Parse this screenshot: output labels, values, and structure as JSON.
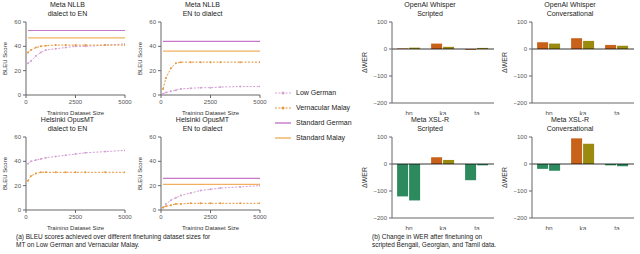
{
  "chart_data": [
    {
      "type": "line",
      "title": "Meta NLLB\ndialect to EN",
      "xlabel": "Training Dataset Size",
      "ylabel": "BLEU Score",
      "x": [
        100,
        250,
        500,
        750,
        1000,
        1500,
        2000,
        2500,
        3000,
        4000,
        5000
      ],
      "series": [
        {
          "name": "Low German",
          "color": "#d4a0d4",
          "marker": "dot",
          "line_style": "dotted",
          "values": [
            26,
            28,
            32,
            35,
            37,
            38,
            39,
            40,
            40,
            41,
            42
          ]
        },
        {
          "name": "Vernacular Malay",
          "color": "#e8963c",
          "marker": "dot",
          "line_style": "dotted",
          "values": [
            35,
            37,
            39,
            40,
            40.5,
            41,
            41,
            41,
            41,
            41,
            41
          ]
        },
        {
          "name": "Standard German",
          "color": "#c878c8",
          "line_style": "solid",
          "values": [
            53,
            53,
            53,
            53,
            53,
            53,
            53,
            53,
            53,
            53,
            53
          ]
        },
        {
          "name": "Standard Malay",
          "color": "#f0b060",
          "line_style": "solid",
          "values": [
            47,
            47,
            47,
            47,
            47,
            47,
            47,
            47,
            47,
            47,
            47
          ]
        }
      ],
      "xlim": [
        0,
        5000
      ],
      "xticks": [
        0,
        2500,
        5000
      ],
      "ylim": [
        0,
        60
      ],
      "yticks": [
        0,
        20,
        40,
        60
      ],
      "grid": false,
      "legend": "right"
    },
    {
      "type": "line",
      "title": "Meta NLLB\nEN to dialect",
      "xlabel": "Training Dataset Size",
      "ylabel": "BLEU Score",
      "x": [
        100,
        250,
        500,
        750,
        1000,
        1500,
        2000,
        2500,
        3000,
        4000,
        5000
      ],
      "series": [
        {
          "name": "Low German",
          "color": "#d4a0d4",
          "marker": "dot",
          "line_style": "dotted",
          "values": [
            1,
            2,
            3,
            4,
            5,
            5.5,
            6,
            6,
            6.5,
            7,
            7
          ]
        },
        {
          "name": "Vernacular Malay",
          "color": "#e8963c",
          "marker": "dot",
          "line_style": "dotted",
          "values": [
            5,
            14,
            22,
            26,
            27,
            27,
            27,
            27,
            27,
            27,
            27
          ]
        },
        {
          "name": "Standard German",
          "color": "#c878c8",
          "line_style": "solid",
          "values": [
            44,
            44,
            44,
            44,
            44,
            44,
            44,
            44,
            44,
            44,
            44
          ]
        },
        {
          "name": "Standard Malay",
          "color": "#f0b060",
          "line_style": "solid",
          "values": [
            36,
            36,
            36,
            36,
            36,
            36,
            36,
            36,
            36,
            36,
            36
          ]
        }
      ],
      "xlim": [
        0,
        5000
      ],
      "xticks": [
        0,
        2500,
        5000
      ],
      "ylim": [
        0,
        60
      ],
      "yticks": [
        0,
        20,
        40,
        60
      ],
      "grid": false
    },
    {
      "type": "line",
      "title": "Helsinki OpusMT\ndialect to EN",
      "xlabel": "Training Dataset Size",
      "ylabel": "BLEU Score",
      "x": [
        100,
        250,
        500,
        750,
        1000,
        1500,
        2000,
        2500,
        3000,
        4000,
        5000
      ],
      "series": [
        {
          "name": "Low German",
          "color": "#d4a0d4",
          "marker": "dot",
          "line_style": "dotted",
          "values": [
            38,
            40,
            41,
            42,
            43,
            44,
            45,
            46,
            47,
            48,
            49
          ]
        },
        {
          "name": "Vernacular Malay",
          "color": "#e8963c",
          "marker": "dot",
          "line_style": "dotted",
          "values": [
            24,
            28,
            30,
            31,
            31,
            31,
            31,
            31,
            31,
            31,
            31
          ]
        }
      ],
      "xlim": [
        0,
        5000
      ],
      "xticks": [
        0,
        2500,
        5000
      ],
      "ylim": [
        0,
        60
      ],
      "yticks": [
        0,
        20,
        40,
        60
      ],
      "grid": false
    },
    {
      "type": "line",
      "title": "Helsinki OpusMT\nEN to dialect",
      "xlabel": "Training Dataset Size",
      "ylabel": "BLEU Score",
      "x": [
        100,
        250,
        500,
        750,
        1000,
        1500,
        2000,
        2500,
        3000,
        4000,
        5000
      ],
      "series": [
        {
          "name": "Low German",
          "color": "#d4a0d4",
          "marker": "dot",
          "line_style": "dotted",
          "values": [
            2,
            5,
            8,
            10,
            12,
            14,
            16,
            17,
            18,
            19,
            20
          ]
        },
        {
          "name": "Vernacular Malay",
          "color": "#e8963c",
          "marker": "dot",
          "line_style": "dotted",
          "values": [
            2,
            3,
            4,
            5,
            5,
            5.5,
            5.5,
            5.5,
            5.5,
            5.5,
            5.5
          ]
        },
        {
          "name": "Standard German",
          "color": "#c878c8",
          "line_style": "solid",
          "values": [
            26,
            26,
            26,
            26,
            26,
            26,
            26,
            26,
            26,
            26,
            26
          ]
        },
        {
          "name": "Standard Malay",
          "color": "#f0b060",
          "line_style": "solid",
          "values": [
            21,
            21,
            21,
            21,
            21,
            21,
            21,
            21,
            21,
            21,
            21
          ]
        }
      ],
      "xlim": [
        0,
        5000
      ],
      "xticks": [
        0,
        2500,
        5000
      ],
      "ylim": [
        0,
        60
      ],
      "yticks": [
        0,
        20,
        40,
        60
      ],
      "grid": false
    },
    {
      "type": "bar",
      "title": "OpenAI Whisper\nScripted",
      "ylabel": "ΔWER",
      "categories": [
        "bn",
        "ka",
        "ta"
      ],
      "series": [
        {
          "color": "#c8621a",
          "values": [
            2,
            20,
            -3
          ]
        },
        {
          "color": "#9a8a10",
          "values": [
            5,
            8,
            4
          ]
        }
      ],
      "ylim": [
        -200,
        100
      ],
      "yticks": [
        {
          "value": -200,
          "label": "−200"
        },
        {
          "value": -100,
          "label": "−100"
        },
        0,
        100
      ],
      "grid": false
    },
    {
      "type": "bar",
      "title": "OpenAI Whisper\nConversational",
      "ylabel": "ΔWER",
      "categories": [
        "bn",
        "ka",
        "ta"
      ],
      "series": [
        {
          "color": "#c8621a",
          "values": [
            25,
            40,
            15
          ]
        },
        {
          "color": "#9a8a10",
          "values": [
            20,
            30,
            12
          ]
        }
      ],
      "ylim": [
        -200,
        100
      ],
      "yticks": [
        {
          "value": -200,
          "label": "−200"
        },
        {
          "value": -100,
          "label": "−100"
        },
        0,
        100
      ],
      "grid": false
    },
    {
      "type": "bar",
      "title": "Meta XSL-R\nScripted",
      "ylabel": "ΔWER",
      "categories": [
        "bn",
        "ka",
        "ta"
      ],
      "series": [
        {
          "colors": [
            "#2d8a5e",
            "#c8621a",
            "#2d8a5e"
          ],
          "values": [
            -120,
            25,
            -60
          ]
        },
        {
          "colors": [
            "#2d8a5e",
            "#9a8a10",
            "#2d8a5e"
          ],
          "values": [
            -135,
            15,
            -5
          ]
        }
      ],
      "ylim": [
        -200,
        100
      ],
      "yticks": [
        {
          "value": -200,
          "label": "−200"
        },
        {
          "value": -100,
          "label": "−100"
        },
        0,
        100
      ],
      "grid": false
    },
    {
      "type": "bar",
      "title": "Meta XSL-R\nConversational",
      "ylabel": "ΔWER",
      "categories": [
        "bn",
        "ka",
        "ta"
      ],
      "series": [
        {
          "colors": [
            "#2d8a5e",
            "#c8621a",
            "#2d8a5e"
          ],
          "values": [
            -18,
            95,
            -5
          ]
        },
        {
          "colors": [
            "#2d8a5e",
            "#9a8a10",
            "#2d8a5e"
          ],
          "values": [
            -25,
            75,
            -8
          ]
        }
      ],
      "ylim": [
        -200,
        100
      ],
      "yticks": [
        {
          "value": -200,
          "label": "−200"
        },
        {
          "value": -100,
          "label": "−100"
        },
        0,
        100
      ],
      "grid": false
    }
  ],
  "annotations": [
    "(a) BLEU scores achieved over different finetuning dataset sizes for\nMT on Low German and Vernacular Malay.",
    "(b) Change in WER after finetuning on\nscripted Bengali, Georgian, and Tamil data."
  ]
}
